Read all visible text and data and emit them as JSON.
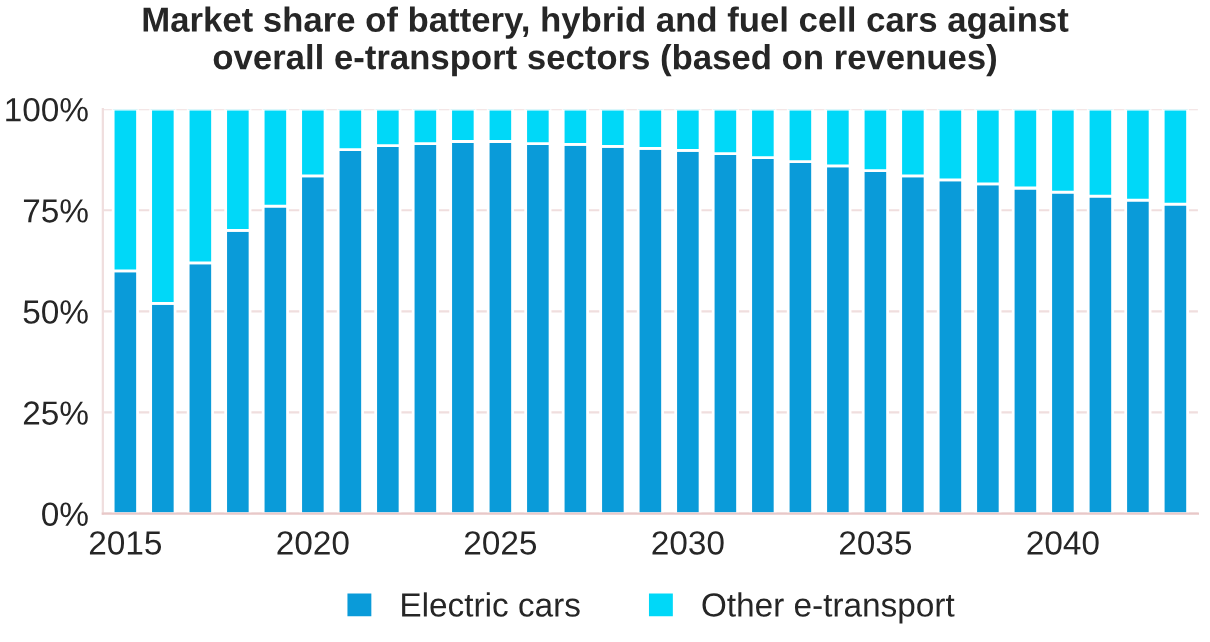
{
  "chart_data": {
    "type": "bar",
    "stacked": true,
    "title": "Market share of battery, hybrid and fuel cell cars against\noverall e-transport sectors (based on revenues)",
    "x": [
      2015,
      2016,
      2017,
      2018,
      2019,
      2020,
      2021,
      2022,
      2023,
      2024,
      2025,
      2026,
      2027,
      2028,
      2029,
      2030,
      2031,
      2032,
      2033,
      2034,
      2035,
      2036,
      2037,
      2038,
      2039,
      2040,
      2041,
      2042,
      2043
    ],
    "series": [
      {
        "name": "Electric cars",
        "color": "#0a9bd9",
        "values": [
          60,
          52,
          62,
          70,
          76,
          83.5,
          90,
          91,
          91.5,
          92,
          92,
          91.5,
          91.3,
          90.8,
          90.3,
          89.8,
          89,
          88,
          87,
          86,
          84.8,
          83.5,
          82.5,
          81.5,
          80.5,
          79.5,
          78.5,
          77.5,
          76.5
        ]
      },
      {
        "name": "Other e-transport",
        "color": "#00d8f8",
        "values": [
          40,
          48,
          38,
          30,
          24,
          16.5,
          10,
          9,
          8.5,
          8,
          8,
          8.5,
          8.7,
          9.2,
          9.7,
          10.2,
          11,
          12,
          13,
          14,
          15.2,
          16.5,
          17.5,
          18.5,
          19.5,
          20.5,
          21.5,
          22.5,
          23.5
        ]
      }
    ],
    "xlim": [
      2014.4,
      2043.6
    ],
    "xticks": [
      2015,
      2020,
      2025,
      2030,
      2035,
      2040
    ],
    "ylim": [
      0,
      100
    ],
    "yticks": [
      {
        "value": 0,
        "label": "0%"
      },
      {
        "value": 25,
        "label": "25%"
      },
      {
        "value": 50,
        "label": "50%"
      },
      {
        "value": 75,
        "label": "75%"
      },
      {
        "value": 100,
        "label": "100%"
      }
    ],
    "grid": "y",
    "legend": "bottom"
  }
}
